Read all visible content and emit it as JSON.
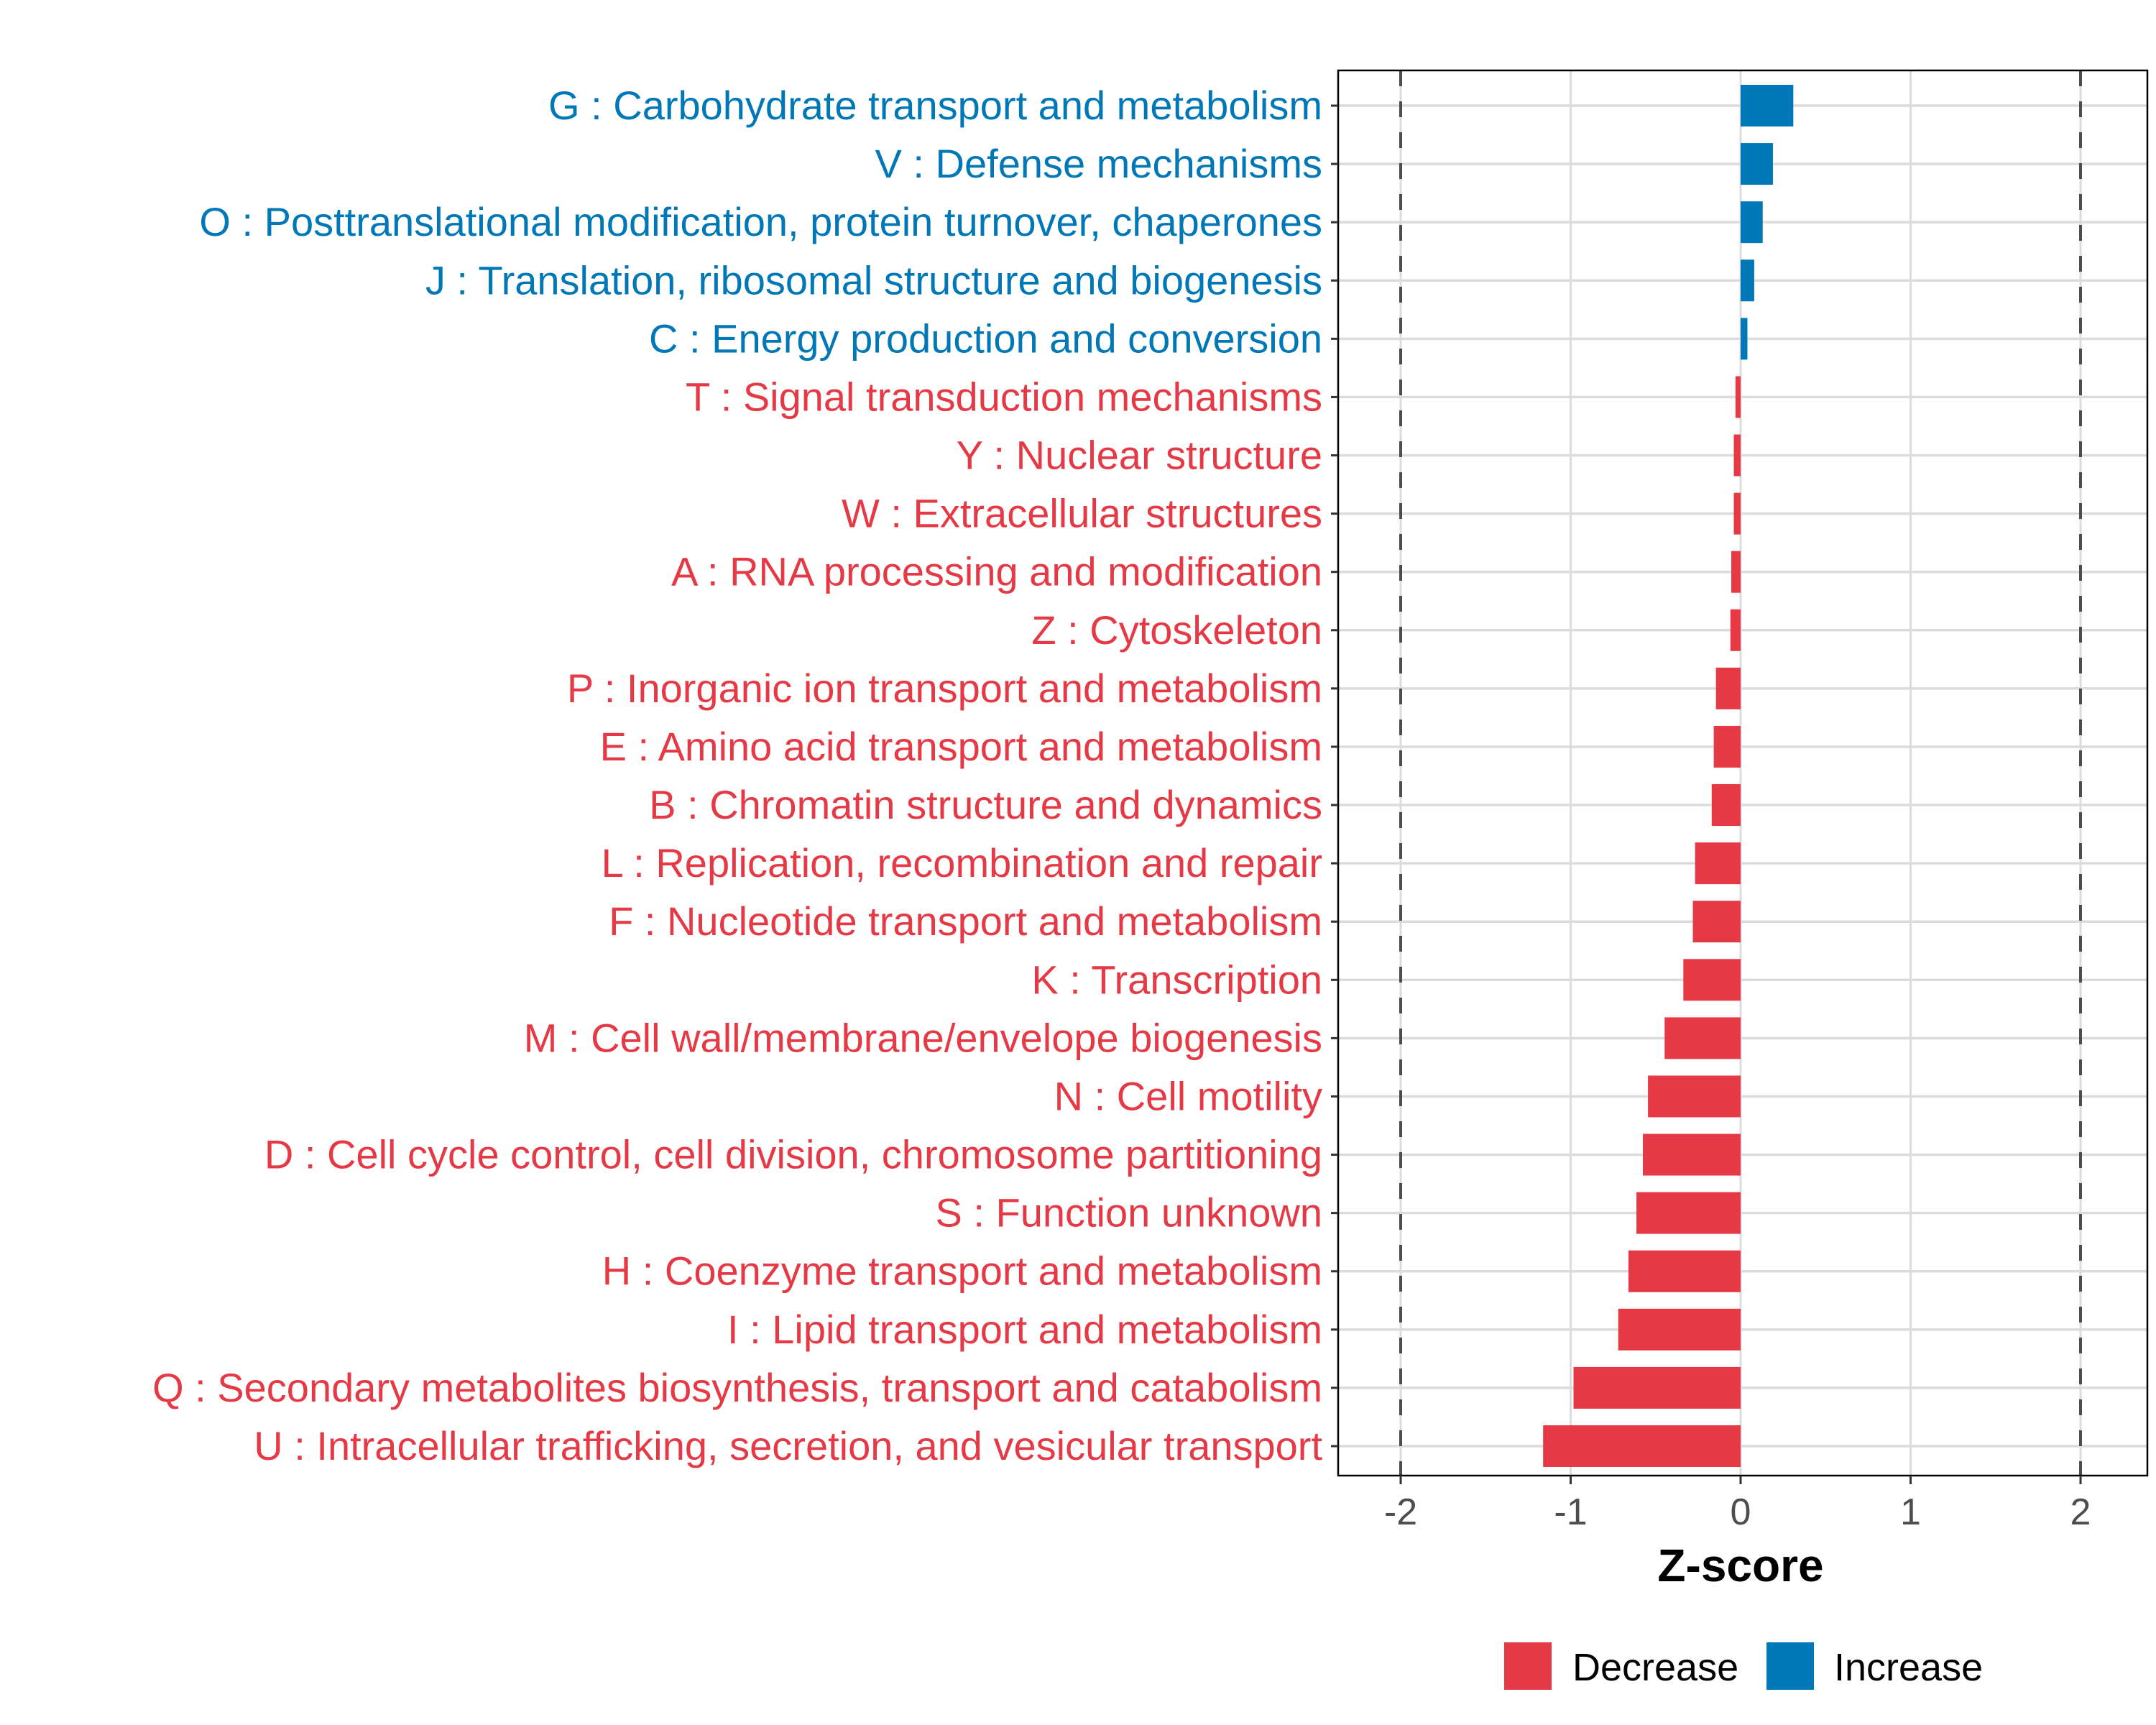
{
  "chart_data": {
    "type": "bar",
    "orientation": "horizontal",
    "title": "",
    "xlabel": "Z-score",
    "ylabel": "",
    "xlim": [
      -2.4,
      2.4
    ],
    "x_ticks": [
      -2,
      -1,
      0,
      1,
      2
    ],
    "x_tick_labels": [
      "-2",
      "-1",
      "0",
      "1",
      "2"
    ],
    "reference_lines": [
      -2,
      2
    ],
    "grid": true,
    "legend_position": "bottom",
    "legend": [
      {
        "name": "Decrease",
        "color": "#E63946"
      },
      {
        "name": "Increase",
        "color": "#0077B6"
      }
    ],
    "categories": [
      "G : Carbohydrate transport and metabolism",
      "V : Defense mechanisms",
      "O : Posttranslational modification, protein turnover, chaperones",
      "J : Translation, ribosomal structure and biogenesis",
      "C : Energy production and conversion",
      "T : Signal transduction mechanisms",
      "Y : Nuclear structure",
      "W : Extracellular structures",
      "A : RNA processing and modification",
      "Z : Cytoskeleton",
      "P : Inorganic ion transport and metabolism",
      "E : Amino acid transport and metabolism",
      "B : Chromatin structure and dynamics",
      "L : Replication, recombination and repair",
      "F : Nucleotide transport and metabolism",
      "K : Transcription",
      "M : Cell wall/membrane/envelope biogenesis",
      "N : Cell motility",
      "D : Cell cycle control, cell division, chromosome partitioning",
      "S : Function unknown",
      "H : Coenzyme transport and metabolism",
      "I : Lipid transport and metabolism",
      "Q : Secondary metabolites biosynthesis, transport and catabolism",
      "U : Intracellular trafficking, secretion, and vesicular transport"
    ],
    "values": [
      0.31,
      0.19,
      0.13,
      0.08,
      0.04,
      -0.03,
      -0.04,
      -0.04,
      -0.055,
      -0.06,
      -0.145,
      -0.158,
      -0.17,
      -0.268,
      -0.281,
      -0.337,
      -0.447,
      -0.545,
      -0.575,
      -0.613,
      -0.66,
      -0.72,
      -0.983,
      -1.162
    ],
    "groups": [
      "Increase",
      "Increase",
      "Increase",
      "Increase",
      "Increase",
      "Decrease",
      "Decrease",
      "Decrease",
      "Decrease",
      "Decrease",
      "Decrease",
      "Decrease",
      "Decrease",
      "Decrease",
      "Decrease",
      "Decrease",
      "Decrease",
      "Decrease",
      "Decrease",
      "Decrease",
      "Decrease",
      "Decrease",
      "Decrease",
      "Decrease"
    ]
  }
}
